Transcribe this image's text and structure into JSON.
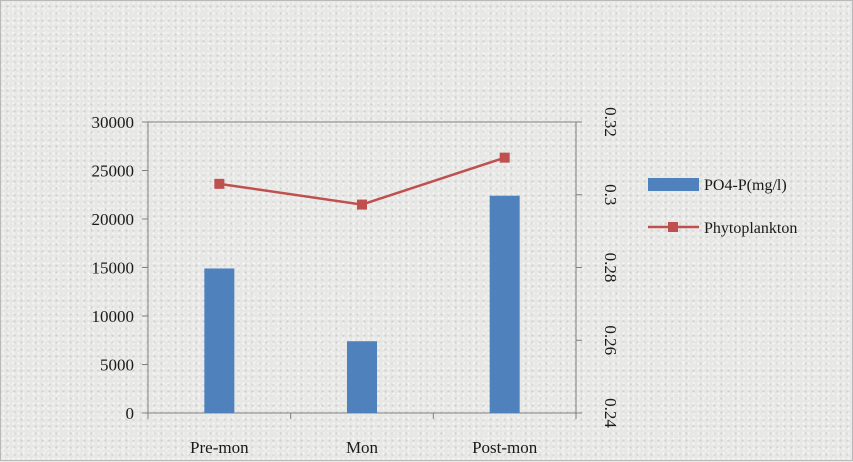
{
  "chart_data": {
    "type": "bar",
    "categories": [
      "Pre-mon",
      "Mon",
      "Post-mon"
    ],
    "series": [
      {
        "name": "PO4-P(mg/l)",
        "type": "bar",
        "axis": "left",
        "color": "#4f81bd",
        "values": [
          14900,
          7400,
          22400
        ]
      },
      {
        "name": "Phytoplankton",
        "type": "line",
        "axis": "right",
        "color": "#c0504d",
        "marker": "square",
        "values": [
          0.303,
          0.2973,
          0.3102
        ]
      }
    ],
    "y_left": {
      "ylim": [
        0,
        30000
      ],
      "ticks": [
        "0",
        "5000",
        "10000",
        "15000",
        "20000",
        "25000",
        "30000"
      ]
    },
    "y_right": {
      "ylim": [
        0.24,
        0.32
      ],
      "ticks": [
        "0.24",
        "0.26",
        "0.28",
        "0.3",
        "0.32"
      ],
      "tick_values": [
        0.24,
        0.26,
        0.28,
        0.3,
        0.32
      ],
      "tick_label_rotation": "90deg"
    },
    "grid": false,
    "legend": "right",
    "title": "",
    "xlabel": "",
    "ylabel": ""
  }
}
